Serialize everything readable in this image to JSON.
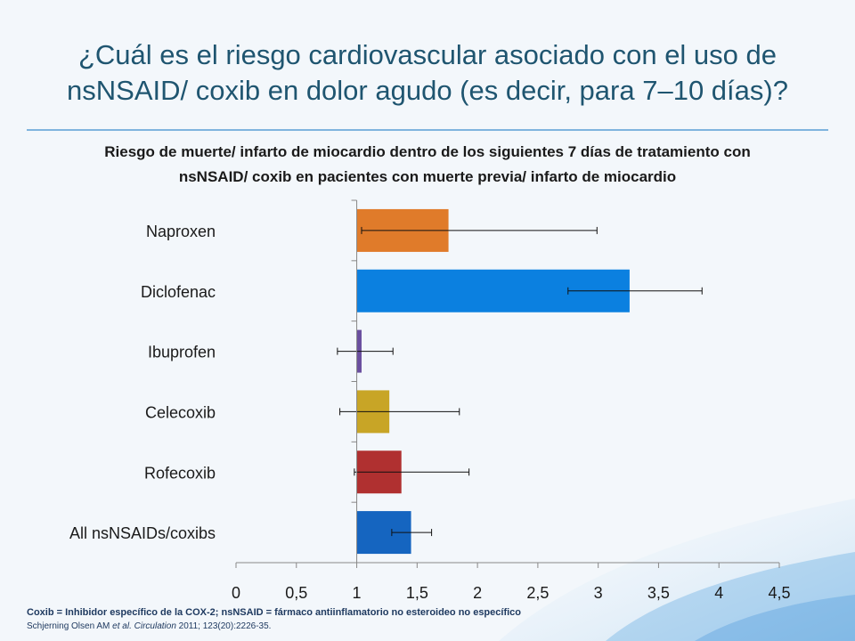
{
  "title": "¿Cuál es el riesgo cardiovascular asociado con el uso de nsNSAID/ coxib en dolor agudo (es decir, para 7–10 días)?",
  "subtitle_line1": "Riesgo de muerte/ infarto de miocardio dentro de los siguientes 7 días de tratamiento con",
  "subtitle_line2": "nsNSAID/ coxib en pacientes con muerte previa/ infarto de miocardio",
  "footnote": "Coxib = Inhibidor específico de la COX-2; nsNSAID = fármaco antiinflamatorio no esteroideo no específico",
  "citation": {
    "authors": "Schjerning Olsen AM ",
    "etal": "et al. ",
    "journal": "Circulation",
    "details": " 2011; 123(20):2226-35."
  },
  "chart_data": {
    "type": "bar",
    "orientation": "horizontal",
    "categories": [
      "Naproxen",
      "Diclofenac",
      "Ibuprofen",
      "Celecoxib",
      "Rofecoxib",
      "All nsNSAIDs/coxibs"
    ],
    "values": [
      1.76,
      3.26,
      1.04,
      1.27,
      1.37,
      1.45
    ],
    "ci_lower": [
      1.04,
      2.75,
      0.84,
      0.86,
      0.98,
      1.29
    ],
    "ci_upper": [
      2.99,
      3.86,
      1.3,
      1.85,
      1.93,
      1.62
    ],
    "colors": [
      "#e07b2a",
      "#0b80e0",
      "#6a4f9f",
      "#c8a526",
      "#b03030",
      "#1565c0"
    ],
    "xlim": [
      0,
      4.5
    ],
    "xticks": [
      "0",
      "0,5",
      "1",
      "1,5",
      "2",
      "2,5",
      "3",
      "3,5",
      "4",
      "4,5"
    ],
    "reference_line": 1,
    "grid": false,
    "xlabel": "",
    "ylabel": ""
  }
}
